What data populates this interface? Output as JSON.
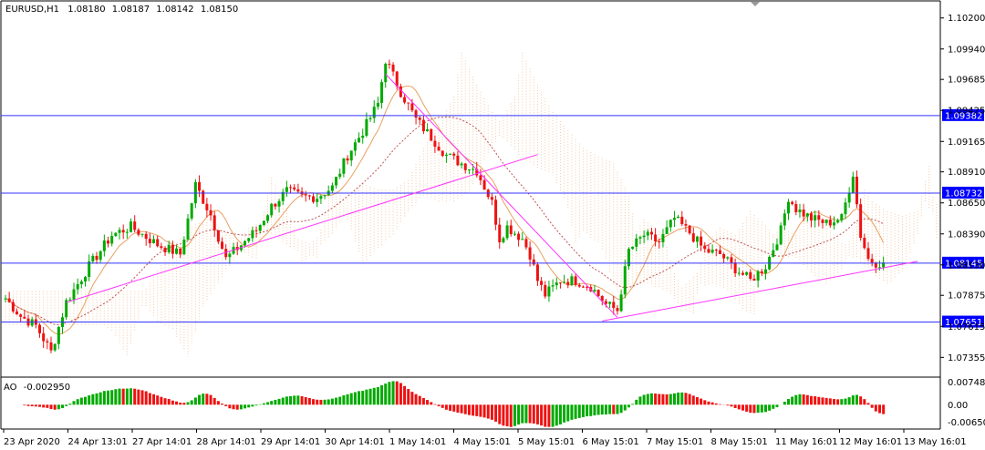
{
  "chart_data": {
    "type": "candlestick",
    "symbol": "EURUSD,H1",
    "ohlc": {
      "open": "1.08180",
      "high": "1.08187",
      "low": "1.08142",
      "close": "1.08150"
    },
    "price_axis": {
      "range": [
        1.0722,
        1.1032
      ],
      "tick_labels": [
        "1.10200",
        "1.09940",
        "1.09685",
        "1.09425",
        "1.09165",
        "1.08910",
        "1.08650",
        "1.08390",
        "1.08130",
        "1.07875",
        "1.07615",
        "1.07355"
      ]
    },
    "horizontal_levels": [
      {
        "price": 1.09382,
        "label": "1.09382"
      },
      {
        "price": 1.08732,
        "label": "1.08732"
      },
      {
        "price": 1.08145,
        "label": "1.08145"
      },
      {
        "price": 1.07651,
        "label": "1.07651"
      }
    ],
    "current_price_label": "1.08150",
    "time_axis": [
      "23 Apr 2020",
      "24 Apr 13:01",
      "27 Apr 14:01",
      "28 Apr 14:01",
      "29 Apr 14:01",
      "30 Apr 14:01",
      "1 May 14:01",
      "4 May 15:01",
      "5 May 15:01",
      "6 May 15:01",
      "7 May 15:01",
      "8 May 15:01",
      "11 May 16:01",
      "12 May 16:01",
      "13 May 16:01"
    ],
    "trendlines": [
      {
        "from": {
          "bar": 16,
          "price": 1.07815
        },
        "to": {
          "bar": 140,
          "price": 1.09055
        }
      },
      {
        "from": {
          "bar": 100,
          "price": 1.0973
        },
        "to": {
          "bar": 161,
          "price": 1.0769
        }
      },
      {
        "from": {
          "bar": 157,
          "price": 1.0766
        },
        "to": {
          "bar": 240,
          "price": 1.0816
        }
      }
    ],
    "close_path": [
      [
        0,
        1.0785
      ],
      [
        4,
        1.077
      ],
      [
        8,
        1.0762
      ],
      [
        12,
        1.074
      ],
      [
        16,
        1.0782
      ],
      [
        22,
        1.0812
      ],
      [
        28,
        1.0838
      ],
      [
        33,
        1.0845
      ],
      [
        40,
        1.083
      ],
      [
        46,
        1.0822
      ],
      [
        50,
        1.088
      ],
      [
        54,
        1.0855
      ],
      [
        58,
        1.0818
      ],
      [
        62,
        1.083
      ],
      [
        66,
        1.0842
      ],
      [
        70,
        1.0862
      ],
      [
        74,
        1.0875
      ],
      [
        78,
        1.087
      ],
      [
        82,
        1.087
      ],
      [
        86,
        1.0878
      ],
      [
        90,
        1.0905
      ],
      [
        94,
        1.0925
      ],
      [
        98,
        1.0948
      ],
      [
        100,
        1.0985
      ],
      [
        104,
        1.0958
      ],
      [
        108,
        1.0935
      ],
      [
        112,
        1.092
      ],
      [
        116,
        1.0905
      ],
      [
        120,
        1.0898
      ],
      [
        124,
        1.0892
      ],
      [
        128,
        1.0865
      ],
      [
        130,
        1.0835
      ],
      [
        132,
        1.0845
      ],
      [
        136,
        1.0835
      ],
      [
        138,
        1.0822
      ],
      [
        140,
        1.08
      ],
      [
        142,
        1.0788
      ],
      [
        146,
        1.08
      ],
      [
        150,
        1.08
      ],
      [
        154,
        1.0795
      ],
      [
        158,
        1.078
      ],
      [
        161,
        1.0775
      ],
      [
        164,
        1.0825
      ],
      [
        168,
        1.0838
      ],
      [
        172,
        1.0832
      ],
      [
        176,
        1.0852
      ],
      [
        180,
        1.084
      ],
      [
        184,
        1.0825
      ],
      [
        188,
        1.0822
      ],
      [
        192,
        1.081
      ],
      [
        196,
        1.08
      ],
      [
        200,
        1.0812
      ],
      [
        204,
        1.0842
      ],
      [
        206,
        1.087
      ],
      [
        208,
        1.086
      ],
      [
        212,
        1.0852
      ],
      [
        216,
        1.0848
      ],
      [
        220,
        1.0852
      ],
      [
        223,
        1.089
      ],
      [
        225,
        1.0838
      ],
      [
        227,
        1.0818
      ],
      [
        229,
        1.0815
      ],
      [
        231,
        1.0815
      ]
    ],
    "indicators": {
      "ichimoku_cloud": true,
      "moving_averages": true,
      "awesome_oscillator": {
        "label": "AO",
        "value": "-0.002950",
        "tick_labels": [
          "0.007487",
          "0.00",
          "-0.006507"
        ],
        "range": [
          -0.006507,
          0.007487
        ]
      }
    },
    "colors": {
      "bull": "#00aa00",
      "bear": "#ee1111",
      "levels": "#3333ff",
      "trend": "#ff33ff",
      "label_bg": "#0000ff",
      "cloud": "#f2c49a",
      "ao_up": "#00aa00",
      "ao_down": "#ee1111"
    }
  }
}
